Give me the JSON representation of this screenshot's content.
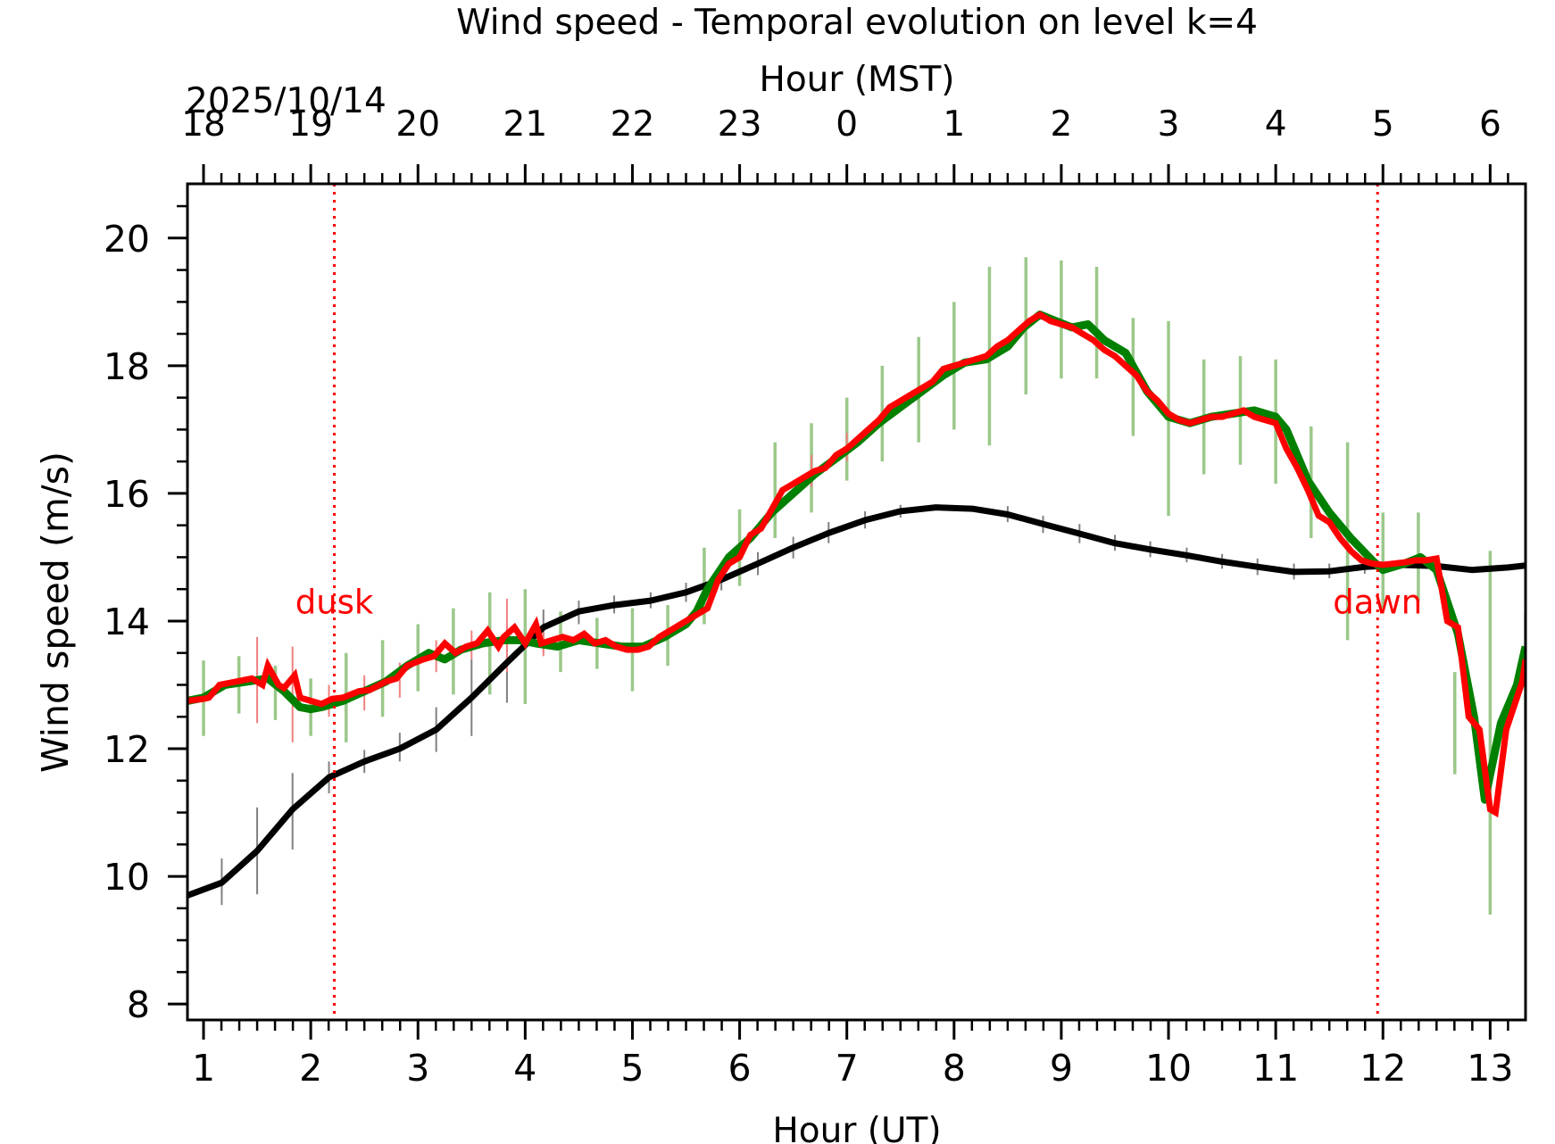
{
  "chart_data": {
    "type": "line",
    "title": "Wind speed - Temporal evolution on level k=4",
    "xlabel": "Hour (UT)",
    "ylabel": "Wind speed (m/s)",
    "top_xlabel": "Hour (MST)",
    "top_date": "2025/10/14",
    "xlim": [
      0.85,
      13.33
    ],
    "ylim": [
      7.75,
      20.85
    ],
    "x_ticks": [
      1,
      2,
      3,
      4,
      5,
      6,
      7,
      8,
      9,
      10,
      11,
      12,
      13
    ],
    "x_ticklabels": [
      "1",
      "2",
      "3",
      "4",
      "5",
      "6",
      "7",
      "8",
      "9",
      "10",
      "11",
      "12",
      "13"
    ],
    "y_ticks": [
      8,
      10,
      12,
      14,
      16,
      18,
      20
    ],
    "y_ticklabels": [
      "8",
      "10",
      "12",
      "14",
      "16",
      "18",
      "20"
    ],
    "top_ticks_ut": [
      1,
      2,
      3,
      4,
      5,
      6,
      7,
      8,
      9,
      10,
      11,
      12,
      13
    ],
    "top_ticklabels": [
      "18",
      "19",
      "20",
      "21",
      "22",
      "23",
      "0",
      "1",
      "2",
      "3",
      "4",
      "5",
      "6"
    ],
    "grid": false,
    "annotations": [
      {
        "text": "dusk",
        "x": 2.22,
        "y": 14.3,
        "color": "#ff0000"
      },
      {
        "text": "dawn",
        "x": 11.95,
        "y": 14.3,
        "color": "#ff0000"
      }
    ],
    "vlines": [
      {
        "x": 2.22,
        "color": "#ff0000",
        "style": "dotted"
      },
      {
        "x": 11.95,
        "color": "#ff0000",
        "style": "dotted"
      }
    ],
    "series": [
      {
        "color": "#000000",
        "x": [
          0.85,
          1.17,
          1.5,
          1.83,
          2.17,
          2.5,
          2.83,
          3.17,
          3.5,
          3.83,
          4.17,
          4.5,
          4.83,
          5.17,
          5.5,
          5.83,
          6.17,
          6.5,
          6.83,
          7.17,
          7.5,
          7.83,
          8.17,
          8.5,
          8.83,
          9.17,
          9.5,
          9.83,
          10.17,
          10.5,
          10.83,
          11.17,
          11.5,
          11.83,
          12.17,
          12.5,
          12.83,
          13.17,
          13.33
        ],
        "y": [
          9.7,
          9.9,
          10.4,
          11.05,
          11.55,
          11.8,
          12.0,
          12.3,
          12.8,
          13.35,
          13.9,
          14.15,
          14.25,
          14.32,
          14.45,
          14.65,
          14.9,
          15.15,
          15.38,
          15.58,
          15.72,
          15.78,
          15.76,
          15.67,
          15.52,
          15.37,
          15.22,
          15.12,
          15.03,
          14.93,
          14.85,
          14.77,
          14.78,
          14.85,
          14.88,
          14.86,
          14.8,
          14.84,
          14.87
        ],
        "error_bars": [
          {
            "x": 1.17,
            "lo": 9.55,
            "hi": 10.28
          },
          {
            "x": 1.5,
            "lo": 9.72,
            "hi": 11.08
          },
          {
            "x": 1.83,
            "lo": 10.42,
            "hi": 11.62
          },
          {
            "x": 2.17,
            "lo": 11.3,
            "hi": 11.8
          },
          {
            "x": 2.5,
            "lo": 11.62,
            "hi": 11.98
          },
          {
            "x": 2.83,
            "lo": 11.8,
            "hi": 12.25
          },
          {
            "x": 3.17,
            "lo": 11.95,
            "hi": 12.65
          },
          {
            "x": 3.5,
            "lo": 12.2,
            "hi": 13.4
          },
          {
            "x": 3.83,
            "lo": 12.72,
            "hi": 13.95
          },
          {
            "x": 4.17,
            "lo": 13.52,
            "hi": 14.18
          },
          {
            "x": 4.5,
            "lo": 13.95,
            "hi": 14.32
          },
          {
            "x": 4.83,
            "lo": 14.12,
            "hi": 14.4
          },
          {
            "x": 5.17,
            "lo": 14.2,
            "hi": 14.45
          },
          {
            "x": 5.5,
            "lo": 14.3,
            "hi": 14.6
          },
          {
            "x": 5.83,
            "lo": 14.48,
            "hi": 14.82
          },
          {
            "x": 6.17,
            "lo": 14.72,
            "hi": 15.08
          },
          {
            "x": 6.5,
            "lo": 14.98,
            "hi": 15.32
          },
          {
            "x": 6.83,
            "lo": 15.22,
            "hi": 15.55
          },
          {
            "x": 7.17,
            "lo": 15.45,
            "hi": 15.72
          },
          {
            "x": 7.5,
            "lo": 15.62,
            "hi": 15.82
          },
          {
            "x": 8.5,
            "lo": 15.55,
            "hi": 15.8
          },
          {
            "x": 8.83,
            "lo": 15.38,
            "hi": 15.65
          },
          {
            "x": 9.17,
            "lo": 15.22,
            "hi": 15.52
          },
          {
            "x": 9.5,
            "lo": 15.1,
            "hi": 15.35
          },
          {
            "x": 9.83,
            "lo": 15.0,
            "hi": 15.25
          },
          {
            "x": 10.17,
            "lo": 14.92,
            "hi": 15.15
          },
          {
            "x": 10.5,
            "lo": 14.82,
            "hi": 15.05
          },
          {
            "x": 10.83,
            "lo": 14.72,
            "hi": 14.98
          },
          {
            "x": 11.17,
            "lo": 14.65,
            "hi": 14.9
          },
          {
            "x": 11.5,
            "lo": 14.67,
            "hi": 14.9
          },
          {
            "x": 11.83,
            "lo": 14.74,
            "hi": 14.96
          }
        ]
      },
      {
        "color": "#008000",
        "x": [
          0.85,
          1.0,
          1.2,
          1.4,
          1.6,
          1.75,
          1.9,
          2.0,
          2.1,
          2.3,
          2.5,
          2.7,
          2.9,
          3.1,
          3.25,
          3.4,
          3.6,
          3.8,
          3.95,
          4.1,
          4.3,
          4.5,
          4.7,
          4.9,
          5.1,
          5.3,
          5.5,
          5.6,
          5.7,
          5.9,
          6.1,
          6.3,
          6.5,
          6.7,
          6.9,
          7.1,
          7.3,
          7.5,
          7.7,
          7.9,
          8.1,
          8.3,
          8.5,
          8.65,
          8.8,
          8.95,
          9.1,
          9.25,
          9.4,
          9.6,
          9.8,
          10.0,
          10.2,
          10.4,
          10.6,
          10.8,
          11.0,
          11.1,
          11.3,
          11.5,
          11.7,
          11.9,
          12.0,
          12.2,
          12.35,
          12.5,
          12.7,
          12.85,
          12.95,
          13.1,
          13.25,
          13.33
        ],
        "y": [
          12.75,
          12.8,
          13.0,
          13.05,
          13.1,
          12.9,
          12.65,
          12.62,
          12.65,
          12.75,
          12.9,
          13.05,
          13.3,
          13.5,
          13.4,
          13.55,
          13.65,
          13.7,
          13.7,
          13.65,
          13.6,
          13.7,
          13.65,
          13.6,
          13.6,
          13.75,
          13.95,
          14.15,
          14.5,
          15.0,
          15.3,
          15.7,
          16.0,
          16.3,
          16.55,
          16.8,
          17.1,
          17.35,
          17.6,
          17.85,
          18.05,
          18.1,
          18.3,
          18.6,
          18.8,
          18.7,
          18.6,
          18.65,
          18.4,
          18.2,
          17.6,
          17.2,
          17.1,
          17.2,
          17.25,
          17.3,
          17.2,
          17.0,
          16.2,
          15.7,
          15.3,
          14.95,
          14.8,
          14.9,
          15.0,
          14.8,
          13.8,
          12.5,
          11.2,
          12.4,
          13.0,
          13.6
        ],
        "error_bars": [
          {
            "x": 1.0,
            "lo": 12.2,
            "hi": 13.38
          },
          {
            "x": 1.33,
            "lo": 12.55,
            "hi": 13.45
          },
          {
            "x": 1.67,
            "lo": 12.45,
            "hi": 13.3
          },
          {
            "x": 2.0,
            "lo": 12.2,
            "hi": 13.1
          },
          {
            "x": 2.33,
            "lo": 12.1,
            "hi": 13.5
          },
          {
            "x": 2.67,
            "lo": 12.5,
            "hi": 13.7
          },
          {
            "x": 3.0,
            "lo": 12.9,
            "hi": 13.95
          },
          {
            "x": 3.33,
            "lo": 12.85,
            "hi": 14.2
          },
          {
            "x": 3.67,
            "lo": 12.85,
            "hi": 14.45
          },
          {
            "x": 4.0,
            "lo": 12.7,
            "hi": 14.5
          },
          {
            "x": 4.33,
            "lo": 13.2,
            "hi": 14.15
          },
          {
            "x": 4.67,
            "lo": 13.25,
            "hi": 14.05
          },
          {
            "x": 5.0,
            "lo": 12.9,
            "hi": 14.2
          },
          {
            "x": 5.33,
            "lo": 13.3,
            "hi": 14.25
          },
          {
            "x": 5.67,
            "lo": 13.95,
            "hi": 15.15
          },
          {
            "x": 6.0,
            "lo": 14.55,
            "hi": 15.75
          },
          {
            "x": 6.33,
            "lo": 15.3,
            "hi": 16.8
          },
          {
            "x": 6.67,
            "lo": 15.7,
            "hi": 17.1
          },
          {
            "x": 7.0,
            "lo": 16.2,
            "hi": 17.5
          },
          {
            "x": 7.33,
            "lo": 16.5,
            "hi": 18.0
          },
          {
            "x": 7.67,
            "lo": 16.8,
            "hi": 18.45
          },
          {
            "x": 8.0,
            "lo": 17.0,
            "hi": 19.0
          },
          {
            "x": 8.33,
            "lo": 16.75,
            "hi": 19.55
          },
          {
            "x": 8.67,
            "lo": 17.55,
            "hi": 19.7
          },
          {
            "x": 9.0,
            "lo": 17.8,
            "hi": 19.65
          },
          {
            "x": 9.33,
            "lo": 17.8,
            "hi": 19.55
          },
          {
            "x": 9.67,
            "lo": 16.9,
            "hi": 18.75
          },
          {
            "x": 10.0,
            "lo": 15.65,
            "hi": 18.7
          },
          {
            "x": 10.33,
            "lo": 16.3,
            "hi": 18.1
          },
          {
            "x": 10.67,
            "lo": 16.45,
            "hi": 18.15
          },
          {
            "x": 11.0,
            "lo": 16.15,
            "hi": 18.1
          },
          {
            "x": 11.33,
            "lo": 15.3,
            "hi": 17.05
          },
          {
            "x": 11.67,
            "lo": 13.7,
            "hi": 16.8
          },
          {
            "x": 12.0,
            "lo": 14.2,
            "hi": 15.7
          },
          {
            "x": 12.33,
            "lo": 14.3,
            "hi": 15.7
          },
          {
            "x": 12.67,
            "lo": 11.6,
            "hi": 13.2
          },
          {
            "x": 13.0,
            "lo": 9.4,
            "hi": 15.1
          },
          {
            "x": 13.33,
            "lo": 12.3,
            "hi": 14.1
          }
        ]
      },
      {
        "color": "#ff0000",
        "x": [
          0.85,
          1.0,
          1.05,
          1.15,
          1.3,
          1.45,
          1.55,
          1.6,
          1.7,
          1.75,
          1.85,
          1.9,
          2.0,
          2.1,
          2.2,
          2.3,
          2.45,
          2.55,
          2.7,
          2.8,
          2.9,
          3.05,
          3.15,
          3.25,
          3.35,
          3.45,
          3.55,
          3.65,
          3.75,
          3.8,
          3.9,
          4.0,
          4.1,
          4.15,
          4.25,
          4.35,
          4.45,
          4.55,
          4.65,
          4.75,
          4.85,
          4.95,
          5.05,
          5.15,
          5.25,
          5.35,
          5.45,
          5.55,
          5.65,
          5.7,
          5.8,
          5.9,
          6.0,
          6.1,
          6.2,
          6.3,
          6.4,
          6.5,
          6.6,
          6.7,
          6.8,
          6.9,
          7.0,
          7.1,
          7.2,
          7.3,
          7.4,
          7.5,
          7.6,
          7.7,
          7.8,
          7.9,
          8.0,
          8.1,
          8.2,
          8.3,
          8.4,
          8.5,
          8.6,
          8.7,
          8.8,
          8.9,
          9.0,
          9.1,
          9.2,
          9.3,
          9.4,
          9.5,
          9.6,
          9.7,
          9.8,
          9.9,
          10.0,
          10.1,
          10.2,
          10.3,
          10.4,
          10.5,
          10.6,
          10.7,
          10.8,
          10.9,
          11.0,
          11.1,
          11.2,
          11.3,
          11.4,
          11.5,
          11.6,
          11.7,
          11.8,
          11.9,
          12.0,
          12.1,
          12.2,
          12.3,
          12.4,
          12.5,
          12.6,
          12.7,
          12.8,
          12.9,
          13.0,
          13.05,
          13.15,
          13.2,
          13.3,
          13.33
        ],
        "y": [
          12.75,
          12.78,
          12.8,
          13.0,
          13.05,
          13.1,
          13.0,
          13.3,
          13.0,
          12.95,
          13.15,
          12.8,
          12.75,
          12.7,
          12.78,
          12.8,
          12.9,
          12.92,
          13.05,
          13.1,
          13.3,
          13.4,
          13.45,
          13.65,
          13.5,
          13.6,
          13.65,
          13.85,
          13.6,
          13.75,
          13.9,
          13.65,
          13.95,
          13.65,
          13.7,
          13.75,
          13.7,
          13.8,
          13.65,
          13.7,
          13.6,
          13.55,
          13.55,
          13.6,
          13.75,
          13.85,
          13.95,
          14.05,
          14.15,
          14.2,
          14.65,
          14.9,
          15.0,
          15.35,
          15.45,
          15.75,
          16.05,
          16.15,
          16.25,
          16.35,
          16.4,
          16.6,
          16.7,
          16.85,
          17.0,
          17.15,
          17.35,
          17.45,
          17.55,
          17.65,
          17.75,
          17.95,
          18.0,
          18.05,
          18.1,
          18.15,
          18.3,
          18.4,
          18.55,
          18.7,
          18.8,
          18.7,
          18.65,
          18.6,
          18.5,
          18.4,
          18.25,
          18.15,
          18.0,
          17.85,
          17.6,
          17.45,
          17.25,
          17.15,
          17.1,
          17.15,
          17.2,
          17.2,
          17.25,
          17.3,
          17.2,
          17.15,
          17.1,
          16.7,
          16.4,
          16.05,
          15.65,
          15.55,
          15.3,
          15.1,
          14.95,
          14.9,
          14.88,
          14.9,
          14.92,
          14.95,
          14.95,
          14.98,
          14.0,
          13.9,
          12.5,
          12.3,
          11.05,
          11.0,
          12.3,
          12.55,
          13.05,
          13.4
        ],
        "error_bars": [
          {
            "x": 1.5,
            "lo": 12.4,
            "hi": 13.75
          },
          {
            "x": 1.83,
            "lo": 12.1,
            "hi": 13.6
          },
          {
            "x": 2.17,
            "lo": 12.5,
            "hi": 13.0
          },
          {
            "x": 2.5,
            "lo": 12.6,
            "hi": 13.15
          },
          {
            "x": 2.83,
            "lo": 12.8,
            "hi": 13.35
          },
          {
            "x": 3.17,
            "lo": 13.2,
            "hi": 13.7
          },
          {
            "x": 3.5,
            "lo": 13.4,
            "hi": 13.85
          },
          {
            "x": 3.83,
            "lo": 13.2,
            "hi": 14.35
          },
          {
            "x": 4.17,
            "lo": 13.45,
            "hi": 13.95
          },
          {
            "x": 6.67,
            "lo": 16.1,
            "hi": 16.6
          },
          {
            "x": 7.0,
            "lo": 16.5,
            "hi": 16.95
          }
        ]
      }
    ]
  }
}
